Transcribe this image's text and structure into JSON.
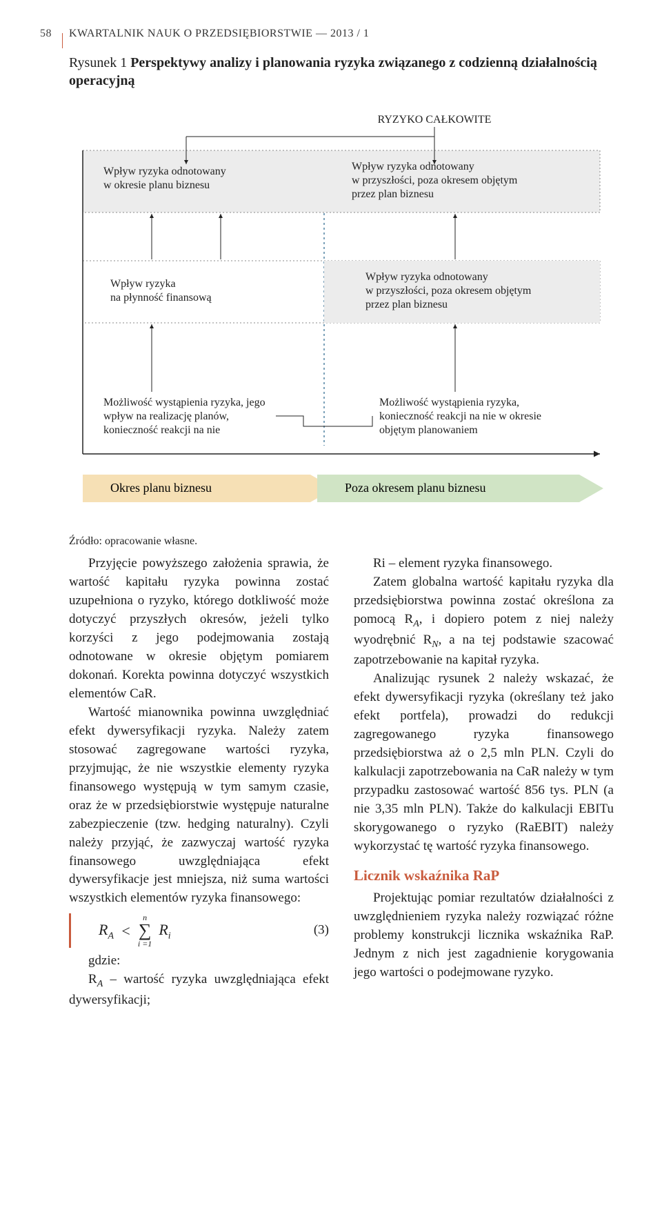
{
  "page_number": "58",
  "running_head": "KWARTALNIK NAUK O PRZEDSIĘBIORSTWIE — 2013 / 1",
  "figure": {
    "label": "Rysunek 1",
    "title_rest": "Perspektywy analizy i planowania ryzyka związanego z codzienną działalnością operacyjną",
    "nodes": {
      "ryzyko": "RYZYKO CAŁKOWITE",
      "n1": "Wpływ ryzyka odnotowany\nw okresie planu biznesu",
      "n2": "Wpływ ryzyka odnotowany\nw przyszłości, poza okresem objętym\nprzez plan biznesu",
      "n3": "Wpływ ryzyka\nna płynność finansową",
      "n4": "Wpływ ryzyka odnotowany\nw przyszłości, poza okresem objętym\nprzez plan biznesu",
      "n5": "Możliwość wystąpienia ryzyka, jego\nwpływ na realizację planów,\nkonieczność reakcji na nie",
      "n6": "Możliwość wystąpienia ryzyka,\nkonieczność reakcji na nie w okresie\nobjętym planowaniem"
    },
    "bands": {
      "left": "Okres planu biznesu",
      "right": "Poza okresem planu biznesu"
    },
    "colors": {
      "band_left": "#f6e0b5",
      "band_right": "#d0e4c5",
      "shade": "#ececec",
      "accent": "#9aa",
      "text": "#222222"
    }
  },
  "source_line": "Źródło: opracowanie własne.",
  "left_col": {
    "p1": "Przyjęcie powyższego założenia sprawia, że wartość kapitału ryzyka powinna zostać uzupełniona o ryzyko, którego dotkliwość może dotyczyć przyszłych okresów, jeżeli tylko korzyści z jego podejmowania zostają odnotowane w okresie objętym pomiarem dokonań. Korekta powinna dotyczyć wszystkich elementów CaR.",
    "p2": "Wartość mianownika powinna uwzględniać efekt dywersyfikacji ryzyka. Należy zatem stosować zagregowane wartości ryzyka, przyjmując, że nie wszystkie elementy ryzyka finansowego występują w tym samym czasie, oraz że w przedsiębiorstwie występuje naturalne zabezpieczenie (tzw. hedging naturalny). Czyli należy przyjąć, że zazwyczaj wartość ryzyka finansowego uwzględniająca efekt dywersyfikacje jest mniejsza, niż suma wartości wszystkich elementów ryzyka finansowego:",
    "formula_lhs": "R",
    "formula_lhs_sub": "A",
    "formula_op": "<",
    "formula_sum_top": "n",
    "formula_sum_bot": "i =1",
    "formula_rhs": "R",
    "formula_rhs_sub": "i",
    "formula_num": "(3)",
    "gdzie": "gdzie:",
    "def1_pre": "R",
    "def1_sub": "A",
    "def1_post": " – wartość ryzyka uwzględniająca efekt dywersyfikacji;"
  },
  "right_col": {
    "p0": "Ri – element ryzyka finansowego.",
    "p1": "Zatem globalna wartość kapitału ryzyka dla przedsiębiorstwa powinna zostać określona za pomocą R",
    "p1_sub": "A",
    "p1_cont": ", i dopiero potem z niej należy wyodrębnić R",
    "p1_sub2": "N",
    "p1_cont2": ", a na tej podstawie szacować zapotrzebowanie na kapitał ryzyka.",
    "p2": "Analizując rysunek 2 należy wskazać, że efekt dywersyfikacji ryzyka (określany też jako efekt portfela), prowadzi do redukcji zagregowanego ryzyka finansowego przedsiębiorstwa aż o 2,5 mln PLN. Czyli do kalkulacji zapotrzebowania na CaR należy w tym przypadku zastosować wartość 856 tys. PLN (a nie 3,35 mln PLN). Także do kalkulacji EBITu skorygowanego o ryzyko (RaEBIT) należy wykorzystać tę wartość ryzyka finansowego.",
    "h3": "Licznik wskaźnika RaP",
    "p3": "Projektując pomiar rezultatów działalności z uwzględnieniem ryzyka należy rozwiązać różne problemy konstrukcji licznika wskaźnika RaP. Jednym z nich jest zagadnienie korygowania jego wartości o podejmowane ryzyko."
  }
}
